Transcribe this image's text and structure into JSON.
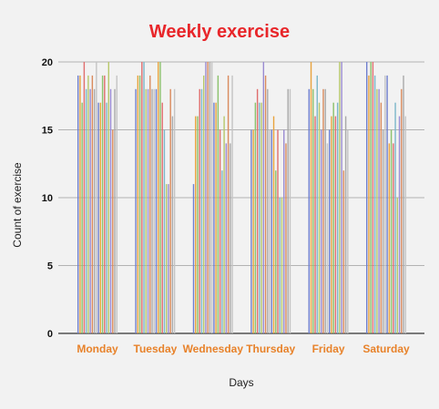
{
  "chart_data": {
    "type": "bar",
    "title": "Weekly exercise",
    "xlabel": "Days",
    "ylabel": "Count of exercise",
    "categories": [
      "Monday",
      "Tuesday",
      "Wednesday",
      "Thursday",
      "Friday",
      "Saturday"
    ],
    "ylim": [
      0,
      20
    ],
    "yticks": [
      "0",
      "5",
      "10",
      "15",
      "20"
    ],
    "grid": true,
    "legend": "none",
    "colors": {
      "title": "#e8262a",
      "category_labels": "#e8822a",
      "grid": "#b3b3b3",
      "baseline": "#333333",
      "bar_palette": [
        "#6f7fce",
        "#e8a33c",
        "#8bc16b",
        "#e06d6d",
        "#7bb7c9",
        "#b7c76a",
        "#9a8bd1",
        "#d98a5c",
        "#a9a9a9",
        "#c4c4c4"
      ]
    },
    "series": [
      {
        "values": [
          19,
          18,
          11,
          15,
          18,
          20
        ]
      },
      {
        "values": [
          19,
          19,
          16,
          15,
          20,
          19
        ]
      },
      {
        "values": [
          17,
          19,
          16,
          17,
          18,
          20
        ]
      },
      {
        "values": [
          20,
          20,
          18,
          18,
          16,
          20
        ]
      },
      {
        "values": [
          18,
          20,
          18,
          17,
          19,
          19
        ]
      },
      {
        "values": [
          19,
          18,
          19,
          17,
          17,
          18
        ]
      },
      {
        "values": [
          18,
          18,
          20,
          20,
          15,
          18
        ]
      },
      {
        "values": [
          19,
          19,
          20,
          19,
          18,
          17
        ]
      },
      {
        "values": [
          18,
          18,
          20,
          18,
          18,
          15
        ]
      },
      {
        "values": [
          20,
          18,
          20,
          15,
          14,
          19
        ]
      },
      {
        "values": [
          17,
          18,
          17,
          15,
          15,
          19
        ]
      },
      {
        "values": [
          17,
          20,
          17,
          16,
          16,
          14
        ]
      },
      {
        "values": [
          19,
          20,
          19,
          12,
          17,
          15
        ]
      },
      {
        "values": [
          19,
          17,
          15,
          15,
          16,
          14
        ]
      },
      {
        "values": [
          17,
          15,
          12,
          10,
          17,
          17
        ]
      },
      {
        "values": [
          20,
          11,
          16,
          10,
          20,
          10
        ]
      },
      {
        "values": [
          18,
          11,
          14,
          15,
          20,
          16
        ]
      },
      {
        "values": [
          15,
          18,
          19,
          14,
          12,
          18
        ]
      },
      {
        "values": [
          18,
          16,
          14,
          18,
          16,
          19
        ]
      },
      {
        "values": [
          19,
          18,
          19,
          18,
          15,
          16
        ]
      }
    ]
  }
}
